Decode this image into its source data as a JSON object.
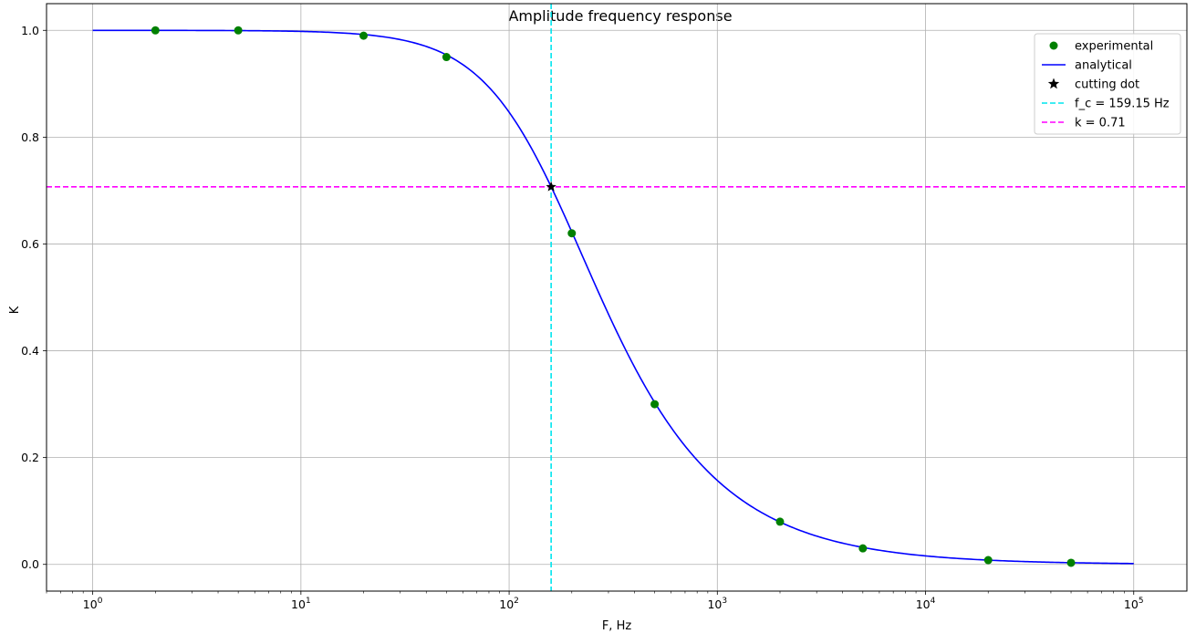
{
  "chart_data": {
    "type": "line",
    "title": "Amplitude frequency response",
    "xlabel": "F, Hz",
    "ylabel": "K",
    "x_scale": "log",
    "xlim": [
      0.6,
      180000
    ],
    "ylim": [
      -0.05,
      1.05
    ],
    "x_ticks": [
      {
        "base": "10",
        "exp": "0",
        "value": 1
      },
      {
        "base": "10",
        "exp": "1",
        "value": 10
      },
      {
        "base": "10",
        "exp": "2",
        "value": 100
      },
      {
        "base": "10",
        "exp": "3",
        "value": 1000
      },
      {
        "base": "10",
        "exp": "4",
        "value": 10000
      },
      {
        "base": "10",
        "exp": "5",
        "value": 100000
      }
    ],
    "y_ticks": [
      "0.0",
      "0.2",
      "0.4",
      "0.6",
      "0.8",
      "1.0"
    ],
    "grid": true,
    "legend_position": "top-right",
    "series": [
      {
        "name": "experimental",
        "kind": "scatter",
        "color": "#008000",
        "x": [
          2,
          5,
          20,
          50,
          200,
          500,
          2000,
          5000,
          20000,
          50000
        ],
        "y": [
          1.0,
          1.0,
          0.99,
          0.95,
          0.62,
          0.3,
          0.08,
          0.03,
          0.008,
          0.003
        ]
      },
      {
        "name": "analytical",
        "kind": "line",
        "color": "#0000ff",
        "x_range": [
          1,
          100000
        ],
        "cutoff_hz": 159.15,
        "formula": "1/sqrt(1+(f/fc)^2)"
      },
      {
        "name": "cutting dot",
        "kind": "marker",
        "color": "#000000",
        "x": [
          159.15
        ],
        "y": [
          0.707
        ]
      },
      {
        "name": "f_c = 159.15 Hz",
        "kind": "vline",
        "color": "#00e5ee",
        "x": 159.15
      },
      {
        "name": "k = 0.71",
        "kind": "hline",
        "color": "#ff00ff",
        "y": 0.707
      }
    ]
  }
}
